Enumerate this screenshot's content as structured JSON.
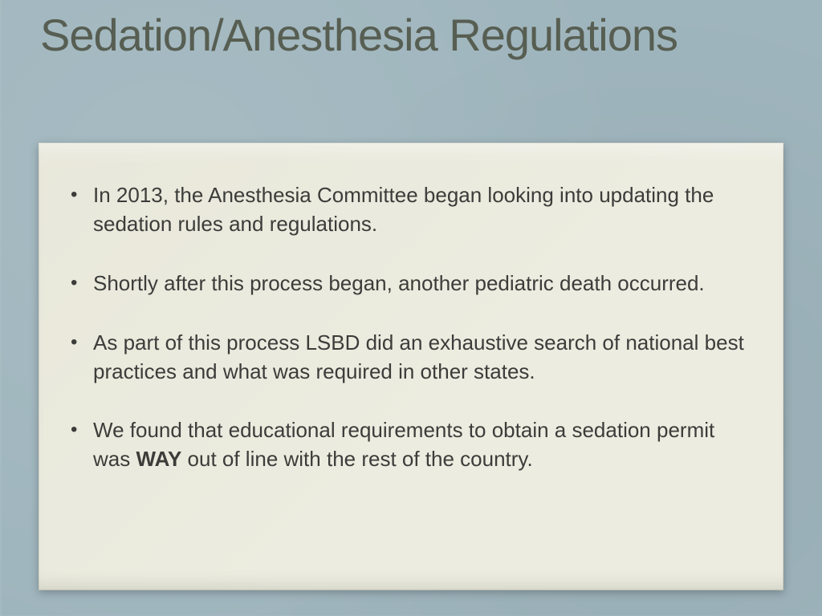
{
  "slide": {
    "title": "Sedation/Anesthesia Regulations",
    "background_color": "#9fb5bd",
    "card_background": "#ecece0",
    "title_color": "#575e52",
    "text_color": "#3c3c3a",
    "title_fontsize": 56,
    "body_fontsize": 26,
    "bullets": [
      {
        "text": "In 2013, the Anesthesia Committee began looking into updating the sedation rules and regulations."
      },
      {
        "text": "Shortly after this process began, another pediatric death occurred."
      },
      {
        "text": "As part of this process LSBD did an exhaustive search of national best practices and  what was required in other states."
      },
      {
        "text_pre": "We found that educational requirements to obtain a sedation permit was ",
        "bold": "WAY",
        "text_post": " out of line with the rest of the country."
      }
    ]
  }
}
